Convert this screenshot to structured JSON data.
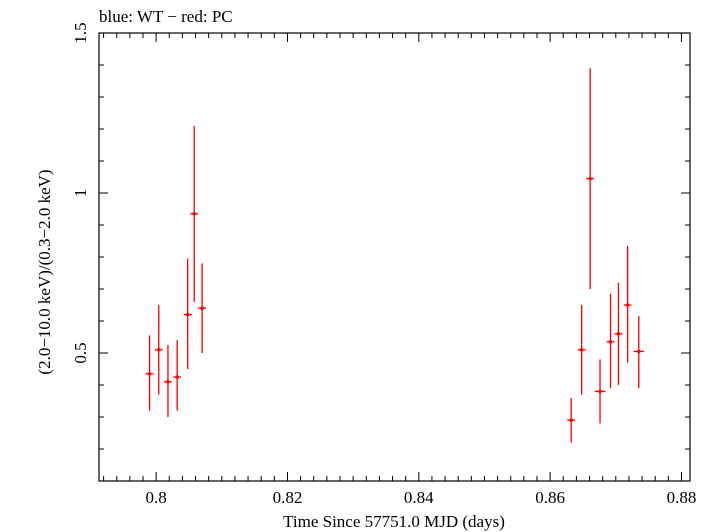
{
  "chart_data": {
    "type": "scatter",
    "title": "blue: WT − red: PC",
    "xlabel": "Time Since 57751.0 MJD (days)",
    "ylabel": "(2.0−10.0 keV)/(0.3−2.0 keV)",
    "xlim": [
      0.7913,
      0.8813
    ],
    "ylim": [
      0.1,
      1.5
    ],
    "x_ticks": [
      {
        "value": 0.8,
        "label": "0.8"
      },
      {
        "value": 0.82,
        "label": "0.82"
      },
      {
        "value": 0.84,
        "label": "0.84"
      },
      {
        "value": 0.86,
        "label": "0.86"
      },
      {
        "value": 0.88,
        "label": "0.88"
      }
    ],
    "y_ticks": [
      {
        "value": 0.5,
        "label": "0.5"
      },
      {
        "value": 1.0,
        "label": "1"
      },
      {
        "value": 1.5,
        "label": "1.5"
      }
    ],
    "series": [
      {
        "name": "PC",
        "color": "#ff0000",
        "points": [
          {
            "x": 0.799,
            "y": 0.435,
            "xerr": 0.0006,
            "ylo": 0.32,
            "yhi": 0.555
          },
          {
            "x": 0.8004,
            "y": 0.51,
            "xerr": 0.0006,
            "ylo": 0.37,
            "yhi": 0.65
          },
          {
            "x": 0.8018,
            "y": 0.41,
            "xerr": 0.0006,
            "ylo": 0.3,
            "yhi": 0.525
          },
          {
            "x": 0.8032,
            "y": 0.425,
            "xerr": 0.0006,
            "ylo": 0.32,
            "yhi": 0.54
          },
          {
            "x": 0.8048,
            "y": 0.62,
            "xerr": 0.0006,
            "ylo": 0.45,
            "yhi": 0.795
          },
          {
            "x": 0.8058,
            "y": 0.935,
            "xerr": 0.0006,
            "ylo": 0.66,
            "yhi": 1.21
          },
          {
            "x": 0.807,
            "y": 0.64,
            "xerr": 0.0006,
            "ylo": 0.5,
            "yhi": 0.78
          },
          {
            "x": 0.8632,
            "y": 0.29,
            "xerr": 0.0006,
            "ylo": 0.22,
            "yhi": 0.36
          },
          {
            "x": 0.8648,
            "y": 0.51,
            "xerr": 0.0006,
            "ylo": 0.37,
            "yhi": 0.65
          },
          {
            "x": 0.8661,
            "y": 1.045,
            "xerr": 0.0006,
            "ylo": 0.7,
            "yhi": 1.39
          },
          {
            "x": 0.8676,
            "y": 0.38,
            "xerr": 0.0008,
            "ylo": 0.28,
            "yhi": 0.48
          },
          {
            "x": 0.8692,
            "y": 0.535,
            "xerr": 0.0006,
            "ylo": 0.39,
            "yhi": 0.685
          },
          {
            "x": 0.8704,
            "y": 0.56,
            "xerr": 0.0006,
            "ylo": 0.4,
            "yhi": 0.72
          },
          {
            "x": 0.8718,
            "y": 0.65,
            "xerr": 0.0006,
            "ylo": 0.47,
            "yhi": 0.835
          },
          {
            "x": 0.8735,
            "y": 0.505,
            "xerr": 0.0008,
            "ylo": 0.39,
            "yhi": 0.615
          }
        ]
      }
    ]
  }
}
